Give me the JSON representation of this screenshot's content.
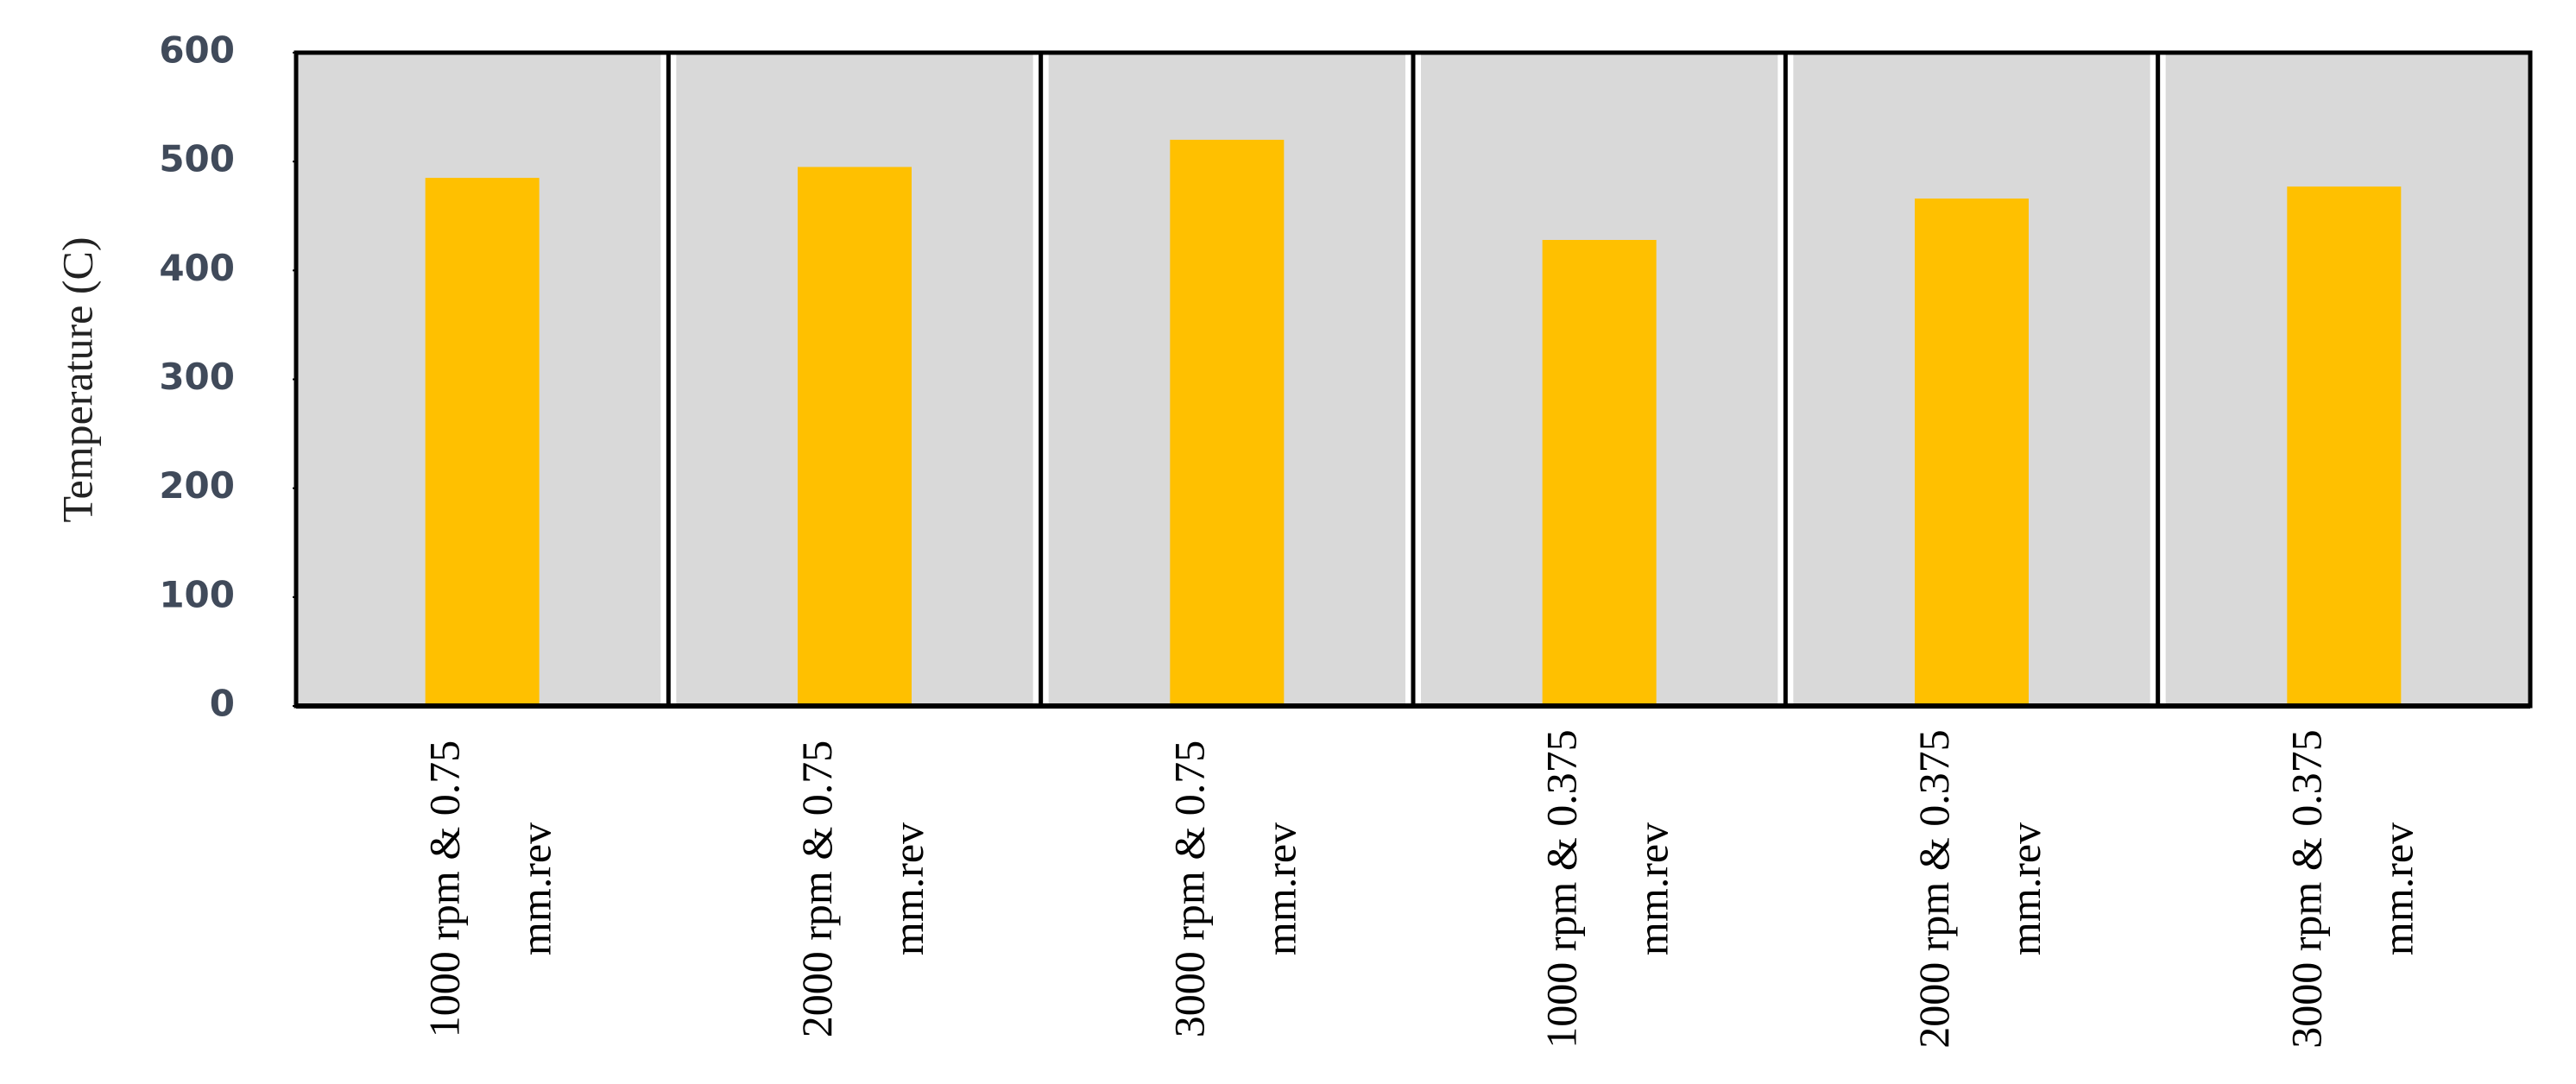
{
  "chart_data": {
    "type": "bar",
    "y_label": "Temperature  (C)",
    "categories": [
      "1000 rpm &  0.75\nmm.rev",
      "2000 rpm &  0.75\nmm.rev",
      "3000 rpm &  0.75\nmm.rev",
      "1000 rpm & 0.375\nmm.rev",
      "2000 rpm & 0.375\nmm.rev",
      "3000 rpm & 0.375\nmm.rev"
    ],
    "values": [
      485,
      495,
      520,
      428,
      466,
      477
    ],
    "color": "#ffc000",
    "ylim": [
      0,
      600
    ],
    "yticks": [
      0,
      100,
      200,
      300,
      400,
      500,
      600
    ]
  }
}
